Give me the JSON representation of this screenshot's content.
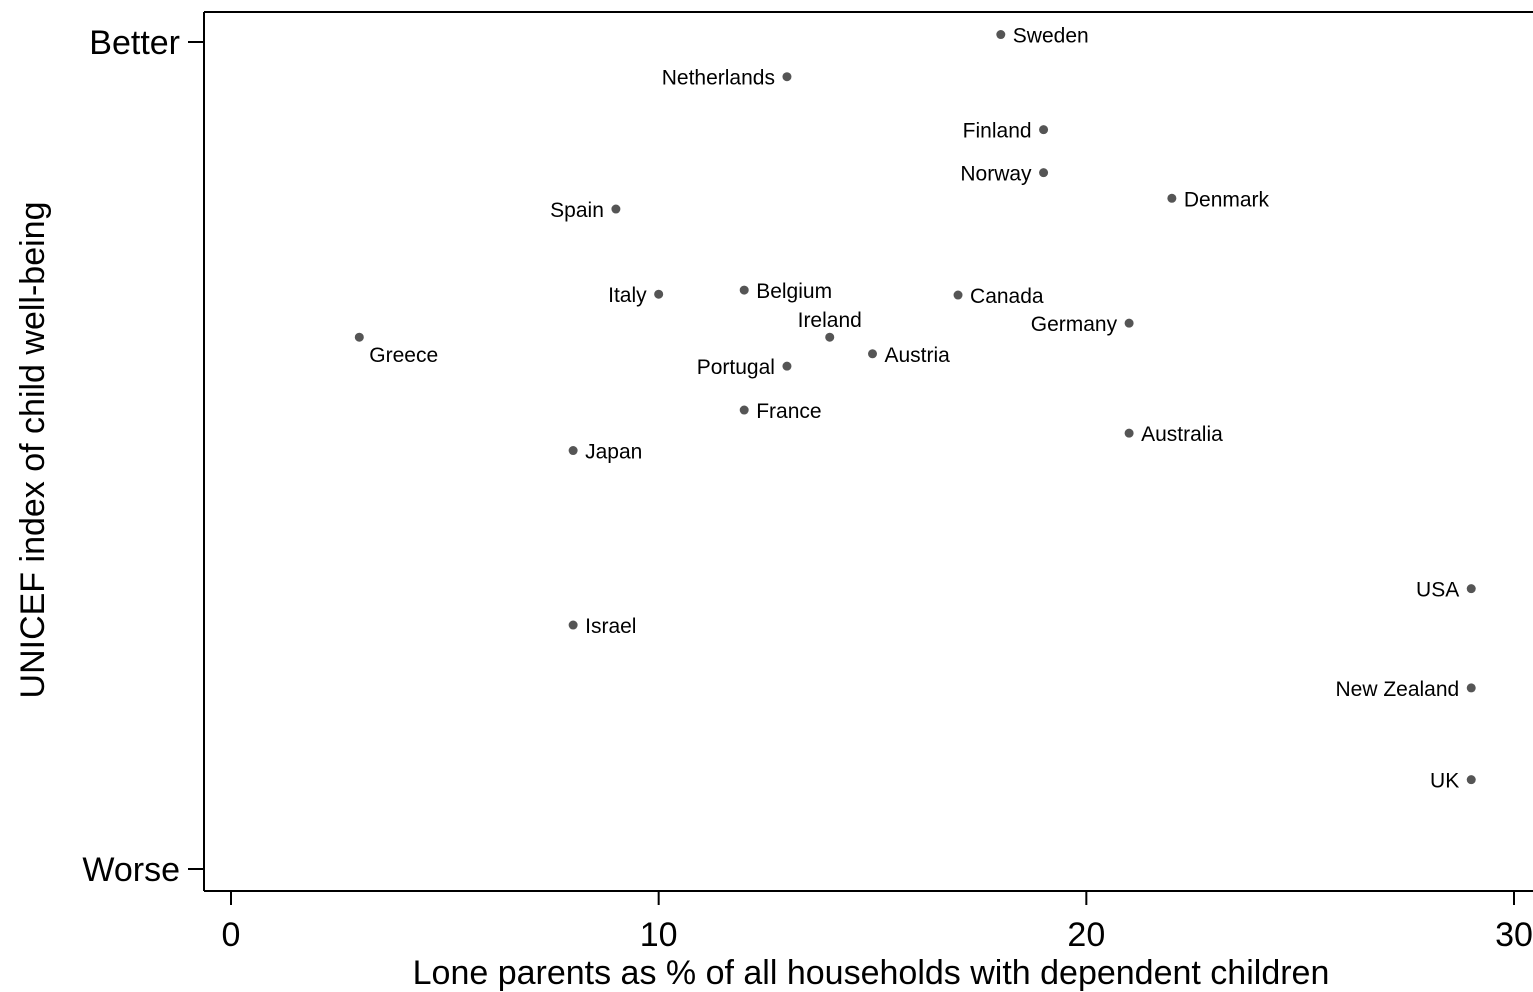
{
  "chart_data": {
    "type": "scatter",
    "xlabel": "Lone parents as % of all households with dependent children",
    "ylabel": "UNICEF index of child well-being",
    "xlim": [
      0,
      30
    ],
    "x_ticks": [
      0,
      10,
      20,
      30
    ],
    "x_tick_labels": [
      "0",
      "10",
      "20",
      "30"
    ],
    "ylim": [
      0,
      100
    ],
    "y_ticks": [
      100,
      0
    ],
    "y_tick_labels": [
      "Better",
      "Worse"
    ],
    "grid": false,
    "legend": "none",
    "marker_color": "#555555",
    "points": [
      {
        "label": "Sweden",
        "x": 18,
        "y": 100.9,
        "label_side": "right"
      },
      {
        "label": "Netherlands",
        "x": 13,
        "y": 95.8,
        "label_side": "left"
      },
      {
        "label": "Finland",
        "x": 19,
        "y": 89.4,
        "label_side": "left"
      },
      {
        "label": "Norway",
        "x": 19,
        "y": 84.2,
        "label_side": "left"
      },
      {
        "label": "Denmark",
        "x": 22,
        "y": 81.1,
        "label_side": "right"
      },
      {
        "label": "Spain",
        "x": 9,
        "y": 79.8,
        "label_side": "left"
      },
      {
        "label": "Italy",
        "x": 10,
        "y": 69.5,
        "label_side": "left"
      },
      {
        "label": "Belgium",
        "x": 12,
        "y": 70.0,
        "label_side": "right"
      },
      {
        "label": "Canada",
        "x": 17,
        "y": 69.4,
        "label_side": "right"
      },
      {
        "label": "Germany",
        "x": 21,
        "y": 66.0,
        "label_side": "left"
      },
      {
        "label": "Ireland",
        "x": 14,
        "y": 64.3,
        "label_side": "above"
      },
      {
        "label": "Greece",
        "x": 3,
        "y": 64.3,
        "label_side": "below-right"
      },
      {
        "label": "Austria",
        "x": 15,
        "y": 62.3,
        "label_side": "right"
      },
      {
        "label": "Portugal",
        "x": 13,
        "y": 60.8,
        "label_side": "left"
      },
      {
        "label": "France",
        "x": 12,
        "y": 55.5,
        "label_side": "right"
      },
      {
        "label": "Australia",
        "x": 21,
        "y": 52.7,
        "label_side": "right"
      },
      {
        "label": "Japan",
        "x": 8,
        "y": 50.6,
        "label_side": "right"
      },
      {
        "label": "USA",
        "x": 29,
        "y": 33.9,
        "label_side": "left"
      },
      {
        "label": "Israel",
        "x": 8,
        "y": 29.5,
        "label_side": "right"
      },
      {
        "label": "New Zealand",
        "x": 29,
        "y": 21.9,
        "label_side": "left"
      },
      {
        "label": "UK",
        "x": 29,
        "y": 10.8,
        "label_side": "left"
      }
    ]
  }
}
